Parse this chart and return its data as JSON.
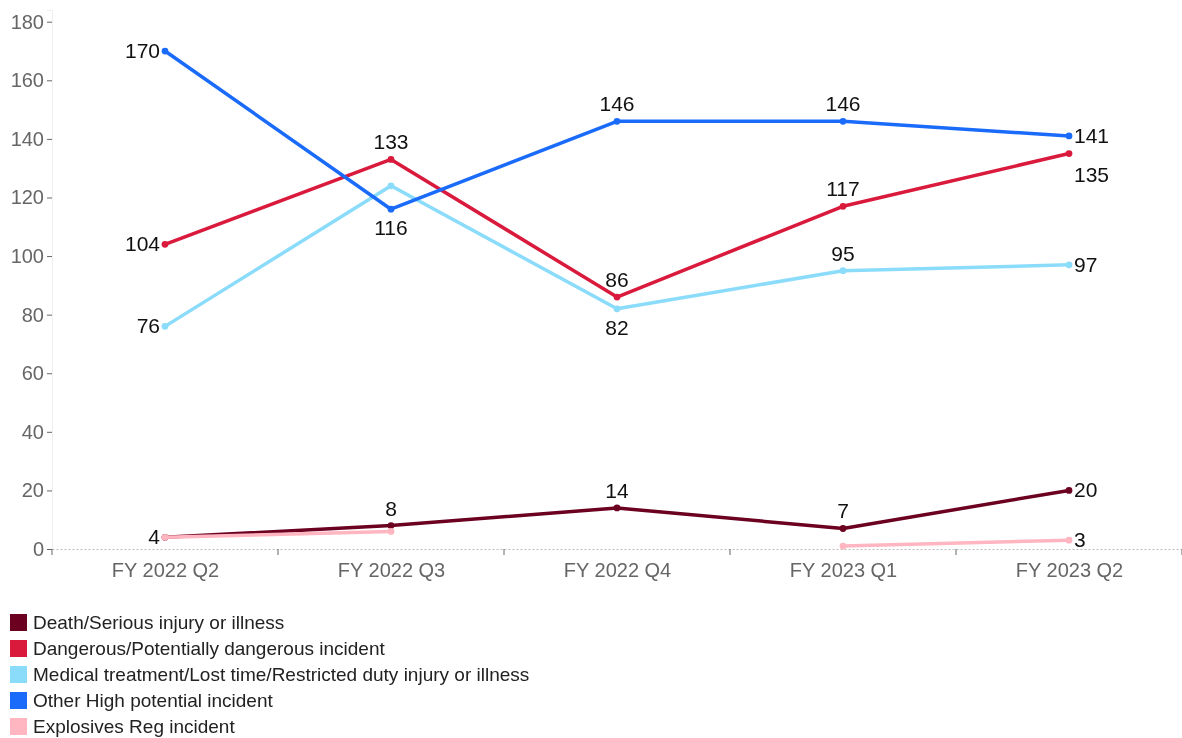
{
  "chart_data": {
    "type": "line",
    "categories": [
      "FY 2022 Q2",
      "FY 2022 Q3",
      "FY 2022 Q4",
      "FY 2023 Q1",
      "FY 2023 Q2"
    ],
    "series": [
      {
        "name": "Death/Serious injury or illness",
        "color": "#6b0020",
        "values": [
          4,
          8,
          14,
          7,
          20
        ],
        "value_labels": [
          "4",
          "8",
          "14",
          "7",
          "20"
        ]
      },
      {
        "name": "Dangerous/Potentially dangerous incident",
        "color": "#d91a3c",
        "values": [
          104,
          133,
          86,
          117,
          135
        ],
        "value_labels": [
          "104",
          "133",
          "86",
          "117",
          "135"
        ]
      },
      {
        "name": "Medical treatment/Lost time/Restricted duty injury or illness",
        "color": "#8adcfa",
        "values": [
          76,
          124,
          82,
          95,
          97
        ],
        "value_labels": [
          "76",
          null,
          "82",
          "95",
          "97"
        ]
      },
      {
        "name": "Other High potential incident",
        "color": "#1a6bfa",
        "values": [
          170,
          116,
          146,
          146,
          141
        ],
        "value_labels": [
          "170",
          "116",
          "146",
          "146",
          "141"
        ]
      },
      {
        "name": "Explosives Reg incident",
        "color": "#ffb6c1",
        "values": [
          4,
          6,
          null,
          1,
          3
        ],
        "value_labels": [
          null,
          null,
          null,
          null,
          "3"
        ]
      }
    ],
    "ylim": [
      0,
      184
    ],
    "yticks": [
      0,
      20,
      40,
      60,
      80,
      100,
      120,
      140,
      160,
      180
    ],
    "grid": false,
    "legend": "bottom",
    "marker": "circle",
    "line_style": "solid"
  }
}
